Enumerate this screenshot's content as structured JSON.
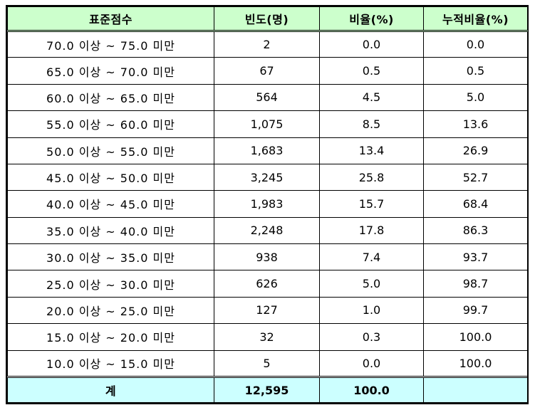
{
  "table": {
    "headers": [
      "표준점수",
      "빈도(명)",
      "비율(%)",
      "누적비율(%)"
    ],
    "rows": [
      {
        "range": "70.0 이상 ~ 75.0 미만",
        "count": "2",
        "ratio": "0.0",
        "cumulative": "0.0"
      },
      {
        "range": "65.0 이상 ~ 70.0 미만",
        "count": "67",
        "ratio": "0.5",
        "cumulative": "0.5"
      },
      {
        "range": "60.0 이상 ~ 65.0 미만",
        "count": "564",
        "ratio": "4.5",
        "cumulative": "5.0"
      },
      {
        "range": "55.0 이상 ~ 60.0 미만",
        "count": "1,075",
        "ratio": "8.5",
        "cumulative": "13.6"
      },
      {
        "range": "50.0 이상 ~ 55.0 미만",
        "count": "1,683",
        "ratio": "13.4",
        "cumulative": "26.9"
      },
      {
        "range": "45.0 이상 ~ 50.0 미만",
        "count": "3,245",
        "ratio": "25.8",
        "cumulative": "52.7"
      },
      {
        "range": "40.0 이상 ~ 45.0 미만",
        "count": "1,983",
        "ratio": "15.7",
        "cumulative": "68.4"
      },
      {
        "range": "35.0 이상 ~ 40.0 미만",
        "count": "2,248",
        "ratio": "17.8",
        "cumulative": "86.3"
      },
      {
        "range": "30.0 이상 ~ 35.0 미만",
        "count": "938",
        "ratio": "7.4",
        "cumulative": "93.7"
      },
      {
        "range": "25.0 이상 ~ 30.0 미만",
        "count": "626",
        "ratio": "5.0",
        "cumulative": "98.7"
      },
      {
        "range": "20.0 이상 ~ 25.0 미만",
        "count": "127",
        "ratio": "1.0",
        "cumulative": "99.7"
      },
      {
        "range": "15.0 이상 ~ 20.0 미만",
        "count": "32",
        "ratio": "0.3",
        "cumulative": "100.0"
      },
      {
        "range": "10.0 이상 ~ 15.0 미만",
        "count": "5",
        "ratio": "0.0",
        "cumulative": "100.0"
      }
    ],
    "total": {
      "label": "계",
      "count": "12,595",
      "ratio": "100.0",
      "cumulative": ""
    }
  },
  "colors": {
    "header_bg": "#ccffcc",
    "total_bg": "#ccffff",
    "border": "#000000"
  }
}
